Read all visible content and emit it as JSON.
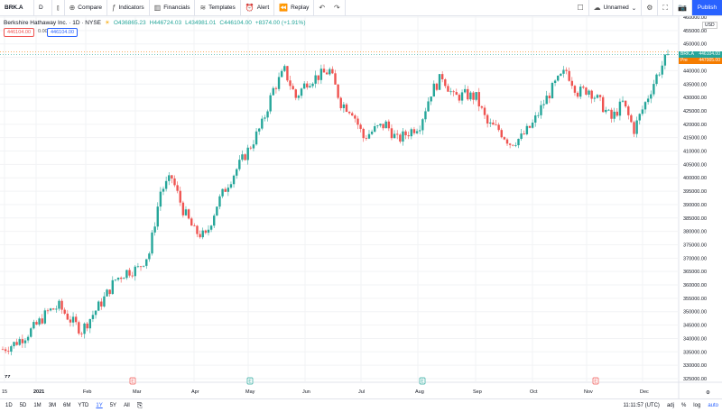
{
  "toolbar": {
    "symbol": "BRK.A",
    "interval": "D",
    "compare": "Compare",
    "indicators": "Indicators",
    "financials": "Financials",
    "templates": "Templates",
    "alert": "Alert",
    "replay": "Replay",
    "layout_name": "Unnamed",
    "publish": "Publish"
  },
  "legend": {
    "title": "Berkshire Hathaway Inc. · 1D · NYSE",
    "open": "O436865.23",
    "high": "H446724.03",
    "low": "L434981.01",
    "close": "C446104.00",
    "change": "+8374.00 (+1.91%)",
    "sell": "446104.00",
    "spread": "0.00",
    "buy": "446104.00"
  },
  "price_axis": {
    "currency": "USD",
    "labels": [
      "460000.00",
      "455000.00",
      "450000.00",
      "445000.00",
      "440000.00",
      "435000.00",
      "430000.00",
      "425000.00",
      "420000.00",
      "415000.00",
      "410000.00",
      "405000.00",
      "400000.00",
      "395000.00",
      "390000.00",
      "385000.00",
      "380000.00",
      "375000.00",
      "370000.00",
      "365000.00",
      "360000.00",
      "355000.00",
      "350000.00",
      "345000.00",
      "340000.00",
      "335000.00",
      "330000.00",
      "325000.00"
    ],
    "last_tag": {
      "symbol": "BRK.A",
      "value": "446104.00"
    },
    "pre_tag": {
      "symbol": "Pre",
      "value": "447005.00"
    }
  },
  "time_axis": {
    "labels": [
      "15",
      "2021",
      "Feb",
      "Mar",
      "Apr",
      "May",
      "Jun",
      "Jul",
      "Aug",
      "Sep",
      "Oct",
      "Nov",
      "Dec"
    ]
  },
  "earnings": {
    "marker": "E"
  },
  "bottom": {
    "ranges": [
      "1D",
      "5D",
      "1M",
      "3M",
      "6M",
      "YTD",
      "1Y",
      "5Y",
      "All"
    ],
    "active": "1Y",
    "clock": "11:11:57 (UTC)",
    "adj": "adj",
    "pct": "%",
    "log": "log",
    "auto": "auto"
  },
  "colors": {
    "up": "#26a69a",
    "down": "#ef5350",
    "accent": "#2962ff"
  },
  "chart_data": {
    "type": "candlestick",
    "ylim": [
      325000,
      460000
    ],
    "weekly_close": [
      336000,
      338000,
      341000,
      345000,
      350000,
      352000,
      347000,
      343000,
      349000,
      355000,
      362000,
      365000,
      366000,
      372000,
      395000,
      400000,
      388000,
      380000,
      378000,
      390000,
      398000,
      405000,
      412000,
      420000,
      433000,
      440000,
      430000,
      436000,
      438000,
      440000,
      428000,
      425000,
      415000,
      418000,
      420000,
      414000,
      417000,
      420000,
      432000,
      438000,
      430000,
      431000,
      430000,
      420000,
      418000,
      413000,
      415000,
      420000,
      428000,
      435000,
      440000,
      432000,
      433000,
      428000,
      422000,
      428000,
      418000,
      428000,
      438000,
      446104
    ]
  }
}
